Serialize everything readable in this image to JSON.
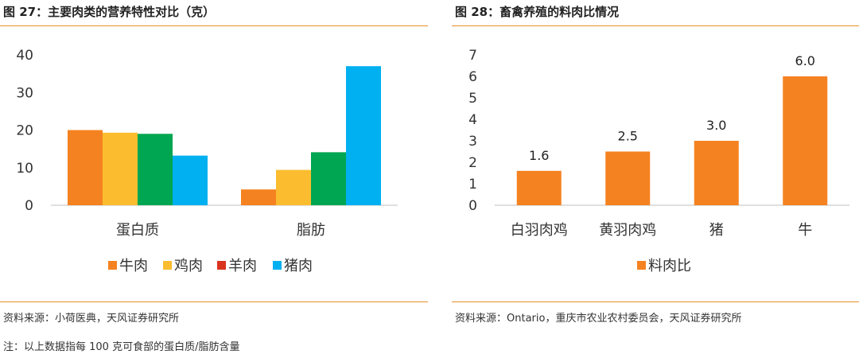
{
  "left": {
    "title": "图 27：主要肉类的营养特性对比（克）",
    "source": "资料来源：小荷医典，天风证券研究所",
    "note": "注：以上数据指每 100 克可食部的蛋白质/脂肪含量"
  },
  "right": {
    "title": "图 28：畜禽养殖的料肉比情况",
    "source": "资料来源：Ontario，重庆市农业农村委员会，天风证券研究所"
  },
  "colors": {
    "accent_rule": "#e8912c",
    "beef": "#f58220",
    "chicken": "#fbbd2f",
    "mutton": "#00a651",
    "pork": "#00b0f0",
    "legend_mutton": "#d9341f",
    "feed": "#f58220"
  },
  "chart_data": [
    {
      "type": "bar",
      "title": "图 27：主要肉类的营养特性对比（克）",
      "categories": [
        "蛋白质",
        "脂肪"
      ],
      "series": [
        {
          "name": "牛肉",
          "values": [
            20.0,
            4.2
          ]
        },
        {
          "name": "鸡肉",
          "values": [
            19.3,
            9.4
          ]
        },
        {
          "name": "羊肉",
          "values": [
            19.0,
            14.1
          ]
        },
        {
          "name": "猪肉",
          "values": [
            13.2,
            37.0
          ]
        }
      ],
      "ylim": [
        0,
        40
      ],
      "yticks": [
        "0",
        "10",
        "20",
        "30",
        "40"
      ],
      "grid": false,
      "legend": "bottom"
    },
    {
      "type": "bar",
      "title": "图 28：畜禽养殖的料肉比情况",
      "categories": [
        "白羽肉鸡",
        "黄羽肉鸡",
        "猪",
        "牛"
      ],
      "series": [
        {
          "name": "料肉比",
          "values": [
            1.6,
            2.5,
            3.0,
            6.0
          ]
        }
      ],
      "data_labels": [
        "1.6",
        "2.5",
        "3.0",
        "6.0"
      ],
      "ylim": [
        0,
        7
      ],
      "yticks": [
        "0",
        "1",
        "2",
        "3",
        "4",
        "5",
        "6",
        "7"
      ],
      "grid": false,
      "legend": "bottom"
    }
  ]
}
